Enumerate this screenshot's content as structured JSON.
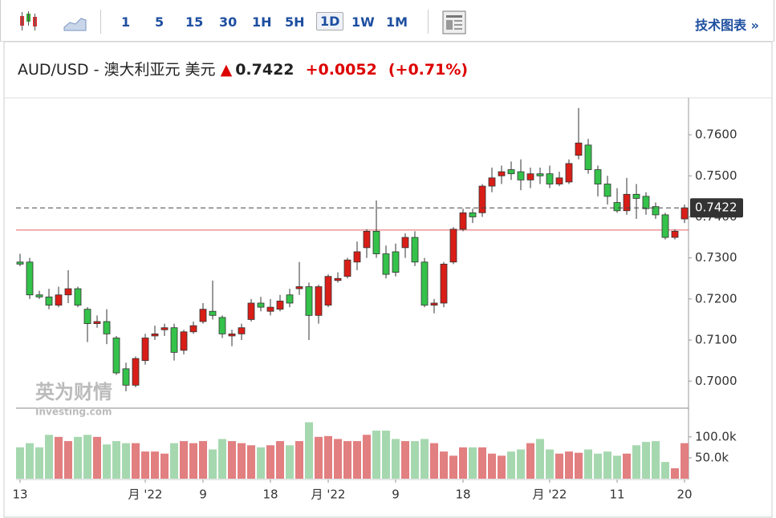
{
  "toolbar": {
    "intervals": [
      "1",
      "5",
      "15",
      "30",
      "1H",
      "5H",
      "1D",
      "1W",
      "1M"
    ],
    "tech_link": "技术图表 »"
  },
  "header": {
    "symbol": "AUD/USD - 澳大利亚元 美元",
    "price": "0.7422",
    "change": "+0.0052",
    "change_pct": "(+0.71%)"
  },
  "watermark": [
    "英为财情",
    "Investing.com"
  ],
  "chart_data": {
    "type": "candlestick",
    "categories": [
      "13",
      null,
      null,
      null,
      null,
      null,
      null,
      null,
      null,
      null,
      null,
      null,
      null,
      "月 '22",
      null,
      null,
      null,
      null,
      null,
      "9",
      null,
      null,
      null,
      null,
      null,
      null,
      "18",
      null,
      null,
      null,
      null,
      null,
      "月 '22",
      null,
      null,
      null,
      null,
      null,
      null,
      "9",
      null,
      null,
      null,
      null,
      null,
      null,
      "18",
      null,
      null,
      null,
      null,
      null,
      null,
      null,
      null,
      "月 '22",
      null,
      null,
      null,
      null,
      null,
      null,
      "11",
      null,
      null,
      null,
      null,
      null,
      null,
      "20"
    ],
    "open": [
      0.729,
      0.729,
      0.721,
      0.7205,
      0.7185,
      0.721,
      0.7225,
      0.7175,
      0.714,
      0.7145,
      0.7105,
      0.703,
      0.699,
      0.705,
      0.711,
      0.7125,
      0.713,
      0.7075,
      0.712,
      0.7145,
      0.717,
      0.7155,
      0.711,
      0.7115,
      0.715,
      0.719,
      0.717,
      0.7175,
      0.721,
      0.7225,
      0.723,
      0.716,
      0.7185,
      0.7245,
      0.7255,
      0.729,
      0.7325,
      0.7365,
      0.731,
      0.7315,
      0.7325,
      0.735,
      0.729,
      0.7185,
      0.719,
      0.729,
      0.737,
      0.741,
      0.741,
      0.7475,
      0.75,
      0.7515,
      0.751,
      0.749,
      0.7505,
      0.7505,
      0.748,
      0.7485,
      0.755,
      0.7575,
      0.7515,
      0.748,
      0.7435,
      0.7415,
      0.7455,
      0.745,
      0.7425,
      0.7405,
      0.735,
      0.7395
    ],
    "high": [
      0.731,
      0.73,
      0.722,
      0.7225,
      0.723,
      0.727,
      0.723,
      0.718,
      0.716,
      0.7175,
      0.711,
      0.7045,
      0.706,
      0.7115,
      0.7135,
      0.714,
      0.714,
      0.7125,
      0.7145,
      0.719,
      0.7245,
      0.716,
      0.7125,
      0.714,
      0.72,
      0.7205,
      0.72,
      0.721,
      0.7225,
      0.729,
      0.724,
      0.7235,
      0.726,
      0.7265,
      0.73,
      0.734,
      0.737,
      0.744,
      0.733,
      0.7335,
      0.736,
      0.7365,
      0.73,
      0.72,
      0.729,
      0.7375,
      0.742,
      0.742,
      0.748,
      0.752,
      0.7525,
      0.7535,
      0.754,
      0.752,
      0.752,
      0.7525,
      0.751,
      0.754,
      0.7665,
      0.759,
      0.7525,
      0.75,
      0.747,
      0.7495,
      0.748,
      0.746,
      0.7435,
      0.741,
      0.737,
      0.743
    ],
    "low": [
      0.728,
      0.72,
      0.72,
      0.7175,
      0.718,
      0.719,
      0.718,
      0.7095,
      0.713,
      0.709,
      0.7015,
      0.6975,
      0.6985,
      0.704,
      0.71,
      0.711,
      0.705,
      0.7065,
      0.7115,
      0.714,
      0.715,
      0.7105,
      0.7085,
      0.71,
      0.7145,
      0.717,
      0.716,
      0.717,
      0.718,
      0.721,
      0.71,
      0.714,
      0.718,
      0.724,
      0.725,
      0.727,
      0.73,
      0.73,
      0.725,
      0.7255,
      0.73,
      0.728,
      0.718,
      0.7165,
      0.718,
      0.7285,
      0.7365,
      0.7385,
      0.74,
      0.746,
      0.748,
      0.749,
      0.7465,
      0.747,
      0.748,
      0.747,
      0.7475,
      0.748,
      0.754,
      0.7505,
      0.745,
      0.743,
      0.741,
      0.7405,
      0.7395,
      0.7405,
      0.7395,
      0.7345,
      0.7345,
      0.7385
    ],
    "close": [
      0.7285,
      0.721,
      0.7205,
      0.7185,
      0.721,
      0.7225,
      0.7185,
      0.714,
      0.7145,
      0.7115,
      0.702,
      0.699,
      0.7055,
      0.7105,
      0.7115,
      0.713,
      0.707,
      0.712,
      0.7135,
      0.7175,
      0.716,
      0.7115,
      0.7115,
      0.713,
      0.719,
      0.718,
      0.718,
      0.7195,
      0.719,
      0.723,
      0.716,
      0.723,
      0.7255,
      0.725,
      0.7295,
      0.7315,
      0.7365,
      0.731,
      0.726,
      0.7265,
      0.735,
      0.729,
      0.7185,
      0.719,
      0.7285,
      0.737,
      0.741,
      0.74,
      0.7475,
      0.7495,
      0.751,
      0.7505,
      0.749,
      0.7505,
      0.75,
      0.748,
      0.7495,
      0.753,
      0.758,
      0.7515,
      0.748,
      0.745,
      0.7415,
      0.7455,
      0.7445,
      0.742,
      0.7405,
      0.735,
      0.7365,
      0.7422
    ],
    "volume": [
      75000,
      85000,
      75000,
      105000,
      100000,
      90000,
      100000,
      105000,
      100000,
      82000,
      90000,
      85000,
      85000,
      65000,
      65000,
      60000,
      85000,
      90000,
      85000,
      90000,
      70000,
      95000,
      90000,
      85000,
      80000,
      75000,
      80000,
      90000,
      80000,
      90000,
      135000,
      100000,
      102000,
      95000,
      90000,
      90000,
      105000,
      115000,
      115000,
      95000,
      90000,
      90000,
      95000,
      85000,
      65000,
      55000,
      75000,
      75000,
      75000,
      60000,
      55000,
      65000,
      70000,
      85000,
      95000,
      70000,
      60000,
      65000,
      62000,
      70000,
      60000,
      65000,
      55000,
      60000,
      80000,
      88000,
      90000,
      40000,
      25000,
      85000
    ],
    "ylim": [
      0.6938,
      0.769
    ],
    "yticks": [
      {
        "value": 0.7,
        "label": "0.7000"
      },
      {
        "value": 0.71,
        "label": "0.7100"
      },
      {
        "value": 0.72,
        "label": "0.7200"
      },
      {
        "value": 0.73,
        "label": "0.7300"
      },
      {
        "value": 0.74,
        "label": "0.7400"
      },
      {
        "value": 0.75,
        "label": "0.7500"
      },
      {
        "value": 0.76,
        "label": "0.7600"
      }
    ],
    "y2lim": [
      0,
      163000
    ],
    "y2ticks": [
      {
        "value": 50000,
        "label": "50.0k"
      },
      {
        "value": 100000,
        "label": "100.0k"
      }
    ],
    "last_price": 0.7422,
    "reference_line": 0.7368,
    "up_color": "#d91e18",
    "down_color": "#34c24a",
    "up_volume_color": "#e27f80",
    "down_volume_color": "#a6d8b0"
  }
}
